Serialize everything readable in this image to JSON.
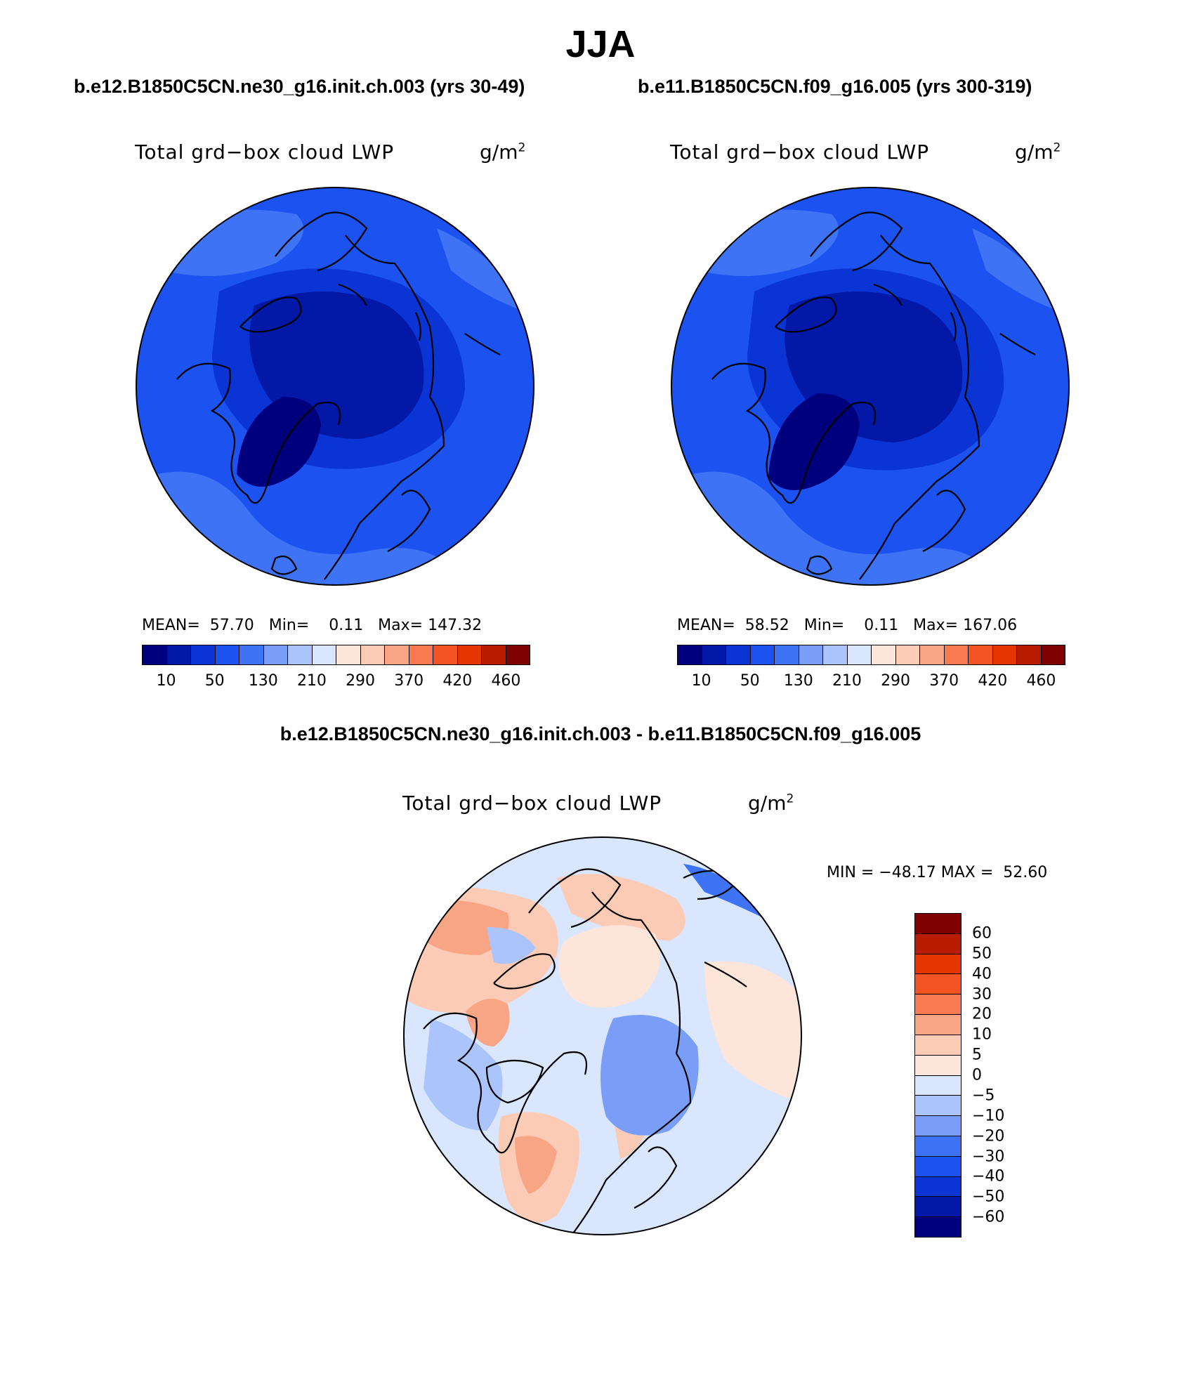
{
  "figure": {
    "title": "JJA",
    "variable": "Total grd−box cloud LWP",
    "units_base": "g/m",
    "units_exp": "2"
  },
  "panel_left": {
    "title": "b.e12.B1850C5CN.ne30_g16.init.ch.003 (yrs 30-49)",
    "stats": "MEAN=  57.70   Min=    0.11   Max= 147.32",
    "mean": 57.7,
    "min": 0.11,
    "max": 147.32
  },
  "panel_right": {
    "title": "b.e11.B1850C5CN.f09_g16.005 (yrs 300-319)",
    "stats": "MEAN=  58.52   Min=    0.11   Max= 167.06",
    "mean": 58.52,
    "min": 0.11,
    "max": 167.06
  },
  "panel_diff": {
    "title": "b.e12.B1850C5CN.ne30_g16.init.ch.003 - b.e11.B1850C5CN.f09_g16.005",
    "stats": "MIN = −48.17 MAX =  52.60",
    "min": -48.17,
    "max": 52.6
  },
  "colorbar_abs": {
    "tick_labels": [
      "10",
      "50",
      "130",
      "210",
      "290",
      "370",
      "420",
      "460"
    ],
    "colors": [
      "#00007f",
      "#0318a6",
      "#0a35d4",
      "#1c52f0",
      "#3f73f5",
      "#7a9ef8",
      "#abc4fb",
      "#d9e6fd",
      "#fde6d9",
      "#fbcbb5",
      "#f8a585",
      "#f77a50",
      "#f45423",
      "#e53500",
      "#b81c00",
      "#7f0000"
    ]
  },
  "colorbar_diff": {
    "tick_labels": [
      "60",
      "50",
      "40",
      "30",
      "20",
      "10",
      "5",
      "0",
      "−5",
      "−10",
      "−20",
      "−30",
      "−40",
      "−50",
      "−60"
    ],
    "colors": [
      "#7f0000",
      "#b81c00",
      "#e53500",
      "#f45423",
      "#f77a50",
      "#f8a585",
      "#fbcbb5",
      "#fde6d9",
      "#d9e6fd",
      "#abc4fb",
      "#7a9ef8",
      "#3f73f5",
      "#1c52f0",
      "#0a35d4",
      "#0318a6",
      "#00007f"
    ]
  },
  "map_colors": {
    "abs_bg": "#1c52f0",
    "abs_mid": "#0a35d4",
    "abs_dark": "#0318a6",
    "abs_darkest": "#00007f",
    "abs_light": "#3f73f5",
    "diff_bg": "#d9e6fd",
    "diff_pos": "#fde6d9",
    "diff_pos2": "#fbcbb5",
    "diff_pos3": "#f8a585",
    "diff_neg": "#abc4fb",
    "diff_neg2": "#7a9ef8",
    "diff_neg3": "#3f73f5"
  }
}
